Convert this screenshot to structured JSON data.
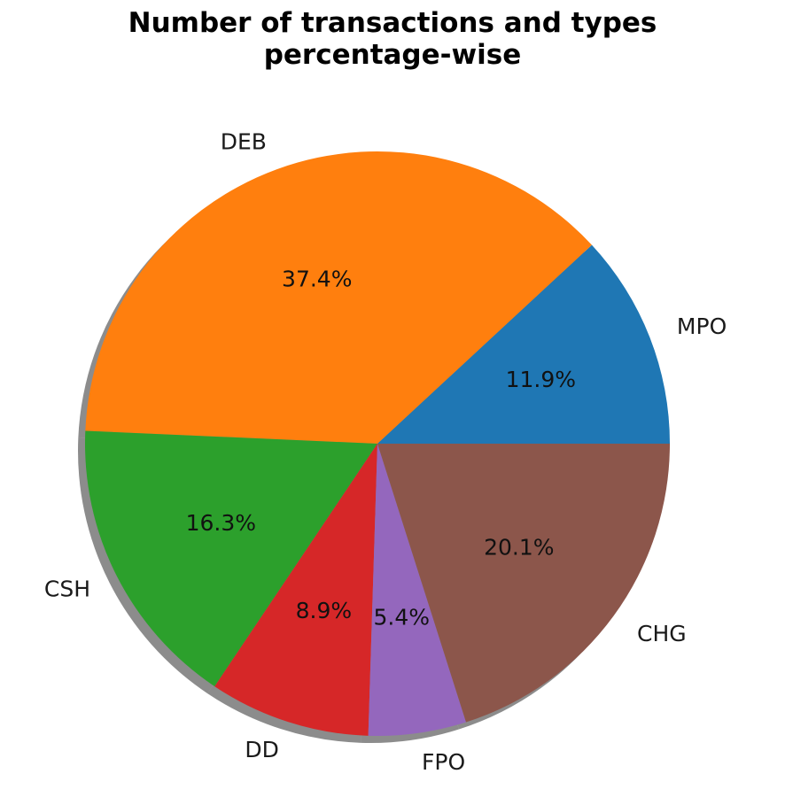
{
  "chart_data": {
    "type": "pie",
    "title": "Number of transactions and types\npercentage-wise",
    "shadow": true,
    "start_angle_deg": 0,
    "direction": "counterclockwise",
    "slices": [
      {
        "label": "MPO",
        "value": 11.9,
        "pct_label": "11.9%",
        "color": "#1f77b4"
      },
      {
        "label": "DEB",
        "value": 37.4,
        "pct_label": "37.4%",
        "color": "#ff7f0e"
      },
      {
        "label": "CSH",
        "value": 16.3,
        "pct_label": "16.3%",
        "color": "#2ca02c"
      },
      {
        "label": "DD",
        "value": 8.9,
        "pct_label": "8.9%",
        "color": "#d62728"
      },
      {
        "label": "FPO",
        "value": 5.4,
        "pct_label": "5.4%",
        "color": "#9467bd"
      },
      {
        "label": "CHG",
        "value": 20.1,
        "pct_label": "20.1%",
        "color": "#8c564b"
      }
    ]
  }
}
